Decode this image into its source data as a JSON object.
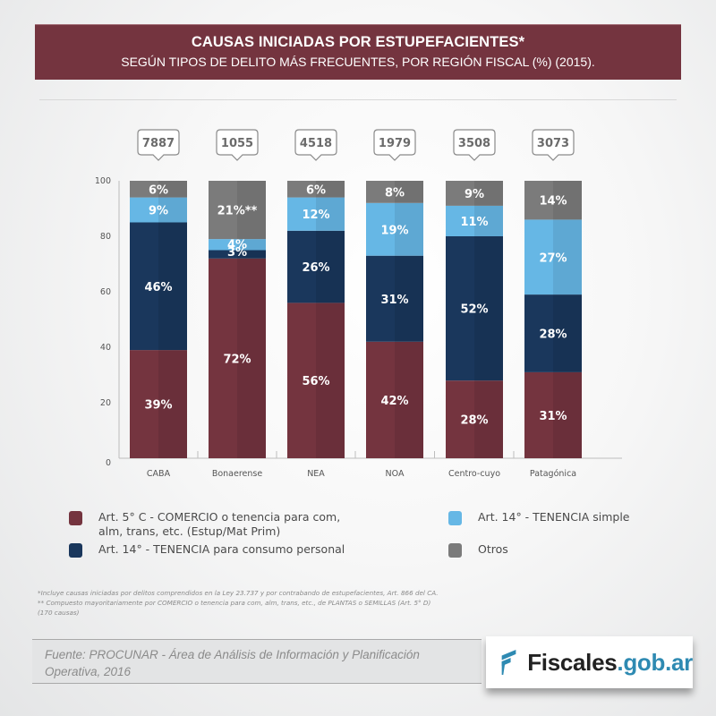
{
  "header": {
    "title": "CAUSAS INICIADAS POR ESTUPEFACIENTES*",
    "subtitle": "SEGÚN TIPOS DE DELITO MÁS FRECUENTES, POR REGIÓN FISCAL (%) (2015)."
  },
  "colors": {
    "header_bg": "#74343f",
    "comercio": "#74343f",
    "consumo": "#1a375c",
    "simple": "#66b7e5",
    "otros": "#7b7b7b"
  },
  "chart_data": {
    "type": "bar",
    "stacked": true,
    "title": "CAUSAS INICIADAS POR ESTUPEFACIENTES* SEGÚN TIPOS DE DELITO MÁS FRECUENTES, POR REGIÓN FISCAL (%) (2015).",
    "xlabel": "",
    "ylabel": "",
    "ylim": [
      0,
      100
    ],
    "yticks": [
      0,
      20,
      40,
      60,
      80,
      100
    ],
    "grid": false,
    "legend_position": "bottom",
    "categories": [
      "CABA",
      "Bonaerense",
      "NEA",
      "NOA",
      "Centro-cuyo",
      "Patagónica"
    ],
    "totals": [
      "7887",
      "1055",
      "4518",
      "1979",
      "3508",
      "3073"
    ],
    "series": [
      {
        "key": "comercio",
        "name": "Art. 5° C - COMERCIO o tenencia para com, alm, trans, etc. (Estup/Mat Prim)",
        "color": "#74343f",
        "values": [
          39,
          72,
          56,
          42,
          28,
          31
        ],
        "labels": [
          "39%",
          "72%",
          "56%",
          "42%",
          "28%",
          "31%"
        ]
      },
      {
        "key": "consumo",
        "name": "Art. 14° - TENENCIA para consumo personal",
        "color": "#1a375c",
        "values": [
          46,
          3,
          26,
          31,
          52,
          28
        ],
        "labels": [
          "46%",
          "3%",
          "26%",
          "31%",
          "52%",
          "28%"
        ]
      },
      {
        "key": "simple",
        "name": "Art. 14° - TENENCIA simple",
        "color": "#66b7e5",
        "values": [
          9,
          4,
          12,
          19,
          11,
          27
        ],
        "labels": [
          "9%",
          "4%",
          "12%",
          "19%",
          "11%",
          "27%"
        ]
      },
      {
        "key": "otros",
        "name": "Otros",
        "color": "#7b7b7b",
        "values": [
          6,
          21,
          6,
          8,
          9,
          14
        ],
        "labels": [
          "6%",
          "21%**",
          "6%",
          "8%",
          "9%",
          "14%"
        ]
      }
    ]
  },
  "legend": {
    "comercio_line1": "Art. 5° C - COMERCIO o tenencia para com,",
    "comercio_line2": "alm, trans, etc. (Estup/Mat Prim)",
    "consumo": "Art. 14° - TENENCIA para consumo personal",
    "simple": "Art. 14° - TENENCIA simple",
    "otros": "Otros"
  },
  "notes": {
    "note1": "*Incluye causas iniciadas por delitos comprendidos en la Ley 23.737 y por contrabando de estupefacientes, Art. 866 del CA.",
    "note2": "** Compuesto mayoritariamente por COMERCIO o tenencia para com, alm, trans, etc., de PLANTAS o SEMILLAS (Art. 5° D)",
    "note3": "(170 causas)"
  },
  "source": {
    "line1": "Fuente: PROCUNAR - Área de Análisis de Información y Planificación",
    "line2": "Operativa, 2016"
  },
  "logo": {
    "word1": "Fiscales",
    "word2": ".gob.ar"
  }
}
